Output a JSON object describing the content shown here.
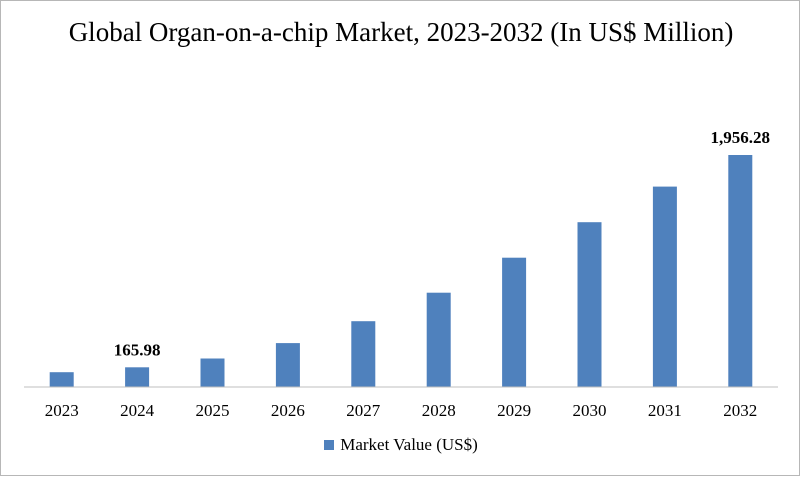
{
  "chart_data": {
    "type": "bar",
    "title": "Global Organ-on-a-chip Market, 2023-2032 (In US$ Million)",
    "categories": [
      "2023",
      "2024",
      "2025",
      "2026",
      "2027",
      "2028",
      "2029",
      "2030",
      "2031",
      "2032"
    ],
    "series": [
      {
        "name": "Market Value (US$)",
        "values": [
          125,
          165.98,
          240,
          370,
          555,
          795,
          1090,
          1390,
          1690,
          1956.28
        ],
        "color": "#4f81bd"
      }
    ],
    "data_labels": [
      {
        "category": "2024",
        "text": "165.98"
      },
      {
        "category": "2032",
        "text": "1,956.28"
      }
    ],
    "xlabel": "",
    "ylabel": "",
    "ylim": [
      0,
      2000
    ],
    "grid": false,
    "legend_position": "bottom"
  }
}
